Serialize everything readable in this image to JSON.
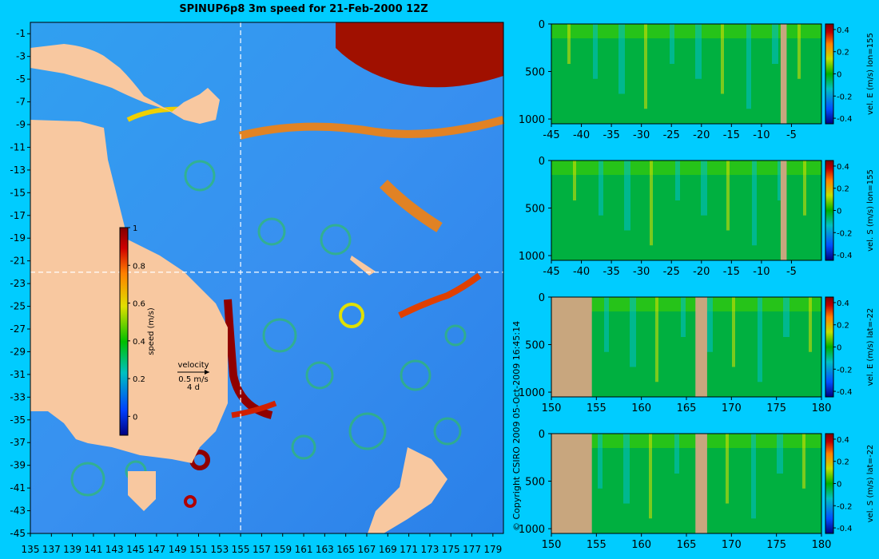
{
  "title": "SPINUP6p8 3m speed for 21-Feb-2000 12Z",
  "copyright": "© Copyright CSIRO 2009   05-Oct-2009 16:45:14",
  "colors": {
    "background": "#00ccff",
    "land": "#f8c8a0",
    "section_land": "#c8a67e",
    "crosshair": "#ffffff"
  },
  "map": {
    "y_ticks": [
      "-1",
      "-3",
      "-5",
      "-7",
      "-9",
      "-11",
      "-13",
      "-15",
      "-17",
      "-19",
      "-21",
      "-23",
      "-25",
      "-27",
      "-29",
      "-31",
      "-33",
      "-35",
      "-37",
      "-39",
      "-41",
      "-43",
      "-45"
    ],
    "x_ticks": [
      "135",
      "137",
      "139",
      "141",
      "143",
      "145",
      "147",
      "149",
      "151",
      "153",
      "155",
      "157",
      "159",
      "161",
      "163",
      "165",
      "167",
      "169",
      "171",
      "173",
      "175",
      "177",
      "179"
    ],
    "xlim": [
      135,
      180
    ],
    "ylim": [
      -45,
      0
    ],
    "crosshair": {
      "lon": 155,
      "lat": -22
    },
    "colorbar": {
      "label": "speed (m/s)",
      "ticks": [
        "1",
        "0.8",
        "0.6",
        "0.4",
        "0.2",
        "0"
      ],
      "range": [
        -0.1,
        1.0
      ]
    },
    "velocity_legend": {
      "title": "velocity",
      "scale": "0.5 m/s",
      "duration": "4 d"
    }
  },
  "sections": [
    {
      "colorbar_label": "vel. E (m/s) lon=155",
      "x_ticks": [
        "-45",
        "-40",
        "-35",
        "-30",
        "-25",
        "-20",
        "-15",
        "-10",
        "-5"
      ],
      "xlim": [
        -45,
        0
      ],
      "land": [
        [
          -6.8,
          -5.8
        ]
      ]
    },
    {
      "colorbar_label": "vel. S (m/s) lon=155",
      "x_ticks": [
        "-45",
        "-40",
        "-35",
        "-30",
        "-25",
        "-20",
        "-15",
        "-10",
        "-5"
      ],
      "xlim": [
        -45,
        0
      ],
      "land": [
        [
          -6.8,
          -5.8
        ]
      ]
    },
    {
      "colorbar_label": "vel. E (m/s) lat=-22",
      "x_ticks": [
        "150",
        "155",
        "160",
        "165",
        "170",
        "175",
        "180"
      ],
      "xlim": [
        150,
        180
      ],
      "land": [
        [
          150,
          154.5
        ],
        [
          166,
          167.3
        ]
      ]
    },
    {
      "colorbar_label": "vel. S (m/s) lat=-22",
      "x_ticks": [
        "150",
        "155",
        "160",
        "165",
        "170",
        "175",
        "180"
      ],
      "xlim": [
        150,
        180
      ],
      "land": [
        [
          150,
          154.5
        ],
        [
          166,
          167.3
        ]
      ]
    }
  ],
  "section_y_ticks": [
    "0",
    "500",
    "1000"
  ],
  "section_ylim": [
    0,
    1050
  ],
  "section_colorbar_ticks": [
    "0.4",
    "0.2",
    "0",
    "-0.2",
    "-0.4"
  ],
  "section_colorbar_range": [
    -0.45,
    0.45
  ]
}
